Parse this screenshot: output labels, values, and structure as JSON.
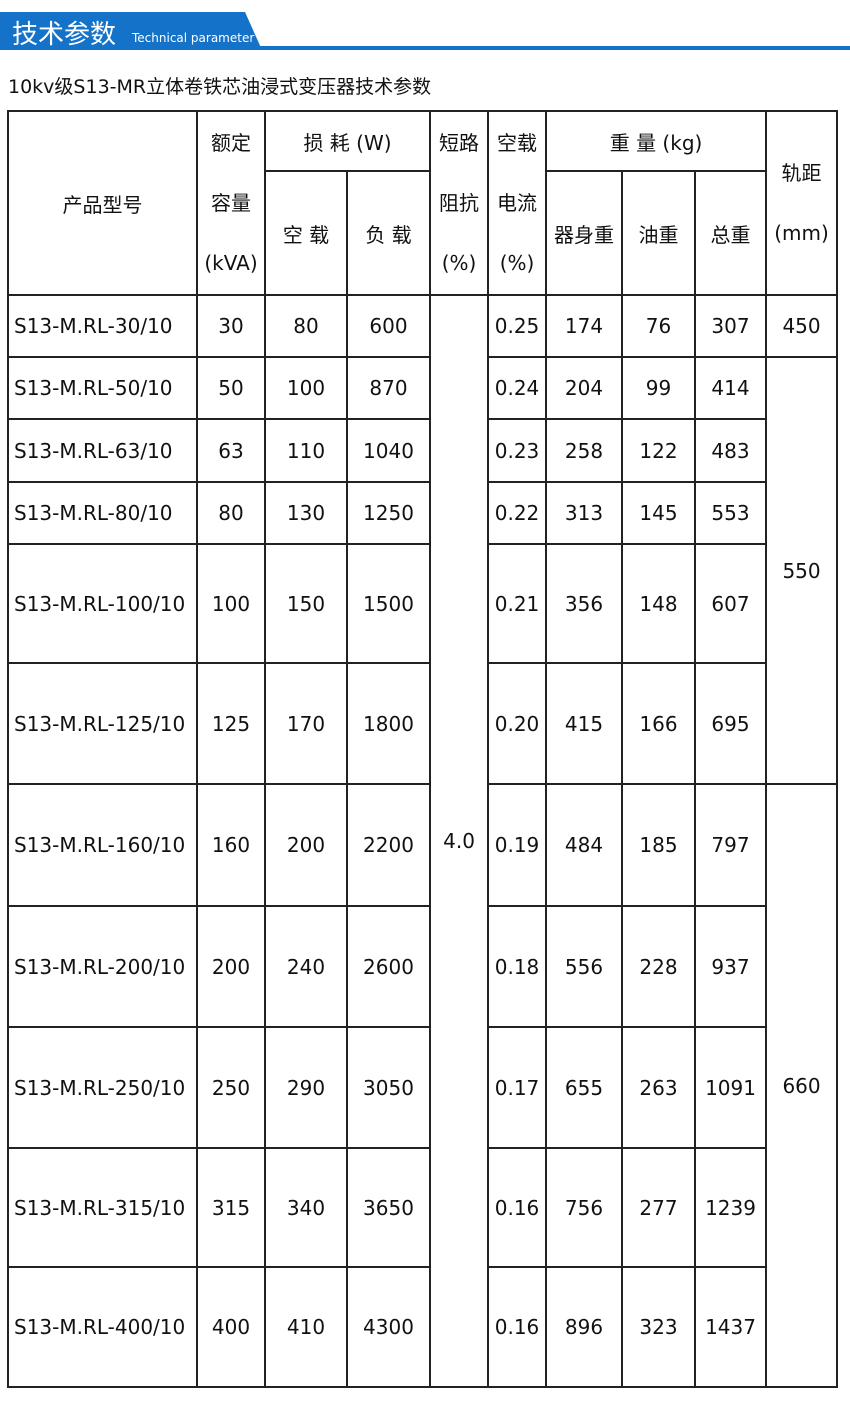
{
  "header": {
    "title": "技术参数",
    "subtitle": "Technical parameter"
  },
  "caption": "10kv级S13-MR立体卷铁芯油浸式变压器技术参数",
  "table": {
    "head": {
      "model": "产品型号",
      "capacity": [
        "额定",
        "容量",
        "(kVA)"
      ],
      "loss": "损 耗 (W)",
      "no_load": "空 载",
      "load": "负 载",
      "impedance": [
        "短路",
        "阻抗",
        "(%)"
      ],
      "current": [
        "空载",
        "电流",
        "(%)"
      ],
      "weight": "重 量 (kg)",
      "body": "器身重",
      "oil": "油重",
      "total": "总重",
      "rail": [
        "轨距",
        "(mm)"
      ]
    },
    "rows": [
      [
        "S13-M.RL-30/10",
        "30",
        "80",
        "600",
        "0.25",
        "174",
        "76",
        "307"
      ],
      [
        "S13-M.RL-50/10",
        "50",
        "100",
        "870",
        "0.24",
        "204",
        "99",
        "414"
      ],
      [
        "S13-M.RL-63/10",
        "63",
        "110",
        "1040",
        "0.23",
        "258",
        "122",
        "483"
      ],
      [
        "S13-M.RL-80/10",
        "80",
        "130",
        "1250",
        "0.22",
        "313",
        "145",
        "553"
      ],
      [
        "S13-M.RL-100/10",
        "100",
        "150",
        "1500",
        "0.21",
        "356",
        "148",
        "607"
      ],
      [
        "S13-M.RL-125/10",
        "125",
        "170",
        "1800",
        "0.20",
        "415",
        "166",
        "695"
      ],
      [
        "S13-M.RL-160/10",
        "160",
        "200",
        "2200",
        "0.19",
        "484",
        "185",
        "797"
      ],
      [
        "S13-M.RL-200/10",
        "200",
        "240",
        "2600",
        "0.18",
        "556",
        "228",
        "937"
      ],
      [
        "S13-M.RL-250/10",
        "250",
        "290",
        "3050",
        "0.17",
        "655",
        "263",
        "1091"
      ],
      [
        "S13-M.RL-315/10",
        "315",
        "340",
        "3650",
        "0.16",
        "756",
        "277",
        "1239"
      ],
      [
        "S13-M.RL-400/10",
        "400",
        "410",
        "4300",
        "0.16",
        "896",
        "323",
        "1437"
      ]
    ],
    "impedance": "4.0",
    "rail": [
      "450",
      "550",
      "660"
    ]
  }
}
